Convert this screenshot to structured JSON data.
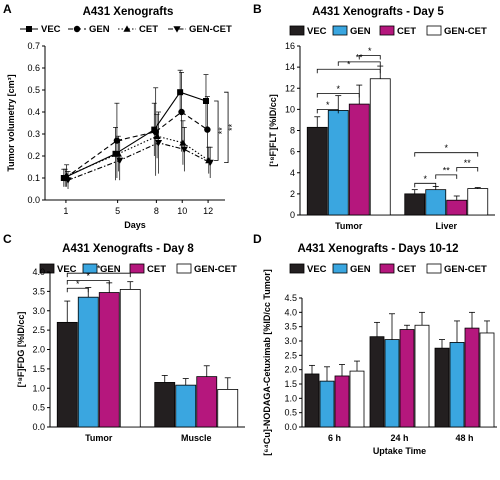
{
  "panels": [
    {
      "letter": "A",
      "title": "A431 Xenografts"
    },
    {
      "letter": "B",
      "title": "A431 Xenografts - Day 5"
    },
    {
      "letter": "C",
      "title": "A431 Xenografts - Day 8"
    },
    {
      "letter": "D",
      "title": "A431 Xenografts - Days 10-12"
    }
  ],
  "colors": {
    "VEC": "#231f20",
    "GEN": "#3aa6e0",
    "CET": "#b5177d",
    "GEN-CET": "#ffffff"
  },
  "chart_data": [
    {
      "type": "line",
      "title": "A431 Xenografts",
      "xlabel": "Days",
      "ylabel": "Tumor volumetry [cm³]",
      "x": [
        1,
        5,
        8,
        10,
        12
      ],
      "xticks": [
        "1",
        "5",
        "8",
        "10",
        "12"
      ],
      "ylim": [
        0,
        0.7
      ],
      "yticks": [
        "0.0",
        "0.1",
        "0.2",
        "0.3",
        "0.4",
        "0.5",
        "0.6",
        "0.7"
      ],
      "series": [
        {
          "name": "VEC",
          "marker": "square",
          "dash": "solid",
          "values": [
            0.1,
            0.21,
            0.32,
            0.49,
            0.45
          ],
          "err": [
            0.04,
            0.12,
            0.12,
            0.1,
            0.12
          ]
        },
        {
          "name": "GEN",
          "marker": "circle",
          "dash": "dashed",
          "values": [
            0.1,
            0.27,
            0.31,
            0.4,
            0.32
          ],
          "err": [
            0.04,
            0.17,
            0.2,
            0.18,
            0.15
          ]
        },
        {
          "name": "CET",
          "marker": "triangle",
          "dash": "dotted",
          "values": [
            0.11,
            0.21,
            0.29,
            0.26,
            0.18
          ],
          "err": [
            0.05,
            0.08,
            0.1,
            0.1,
            0.06
          ]
        },
        {
          "name": "GEN-CET",
          "marker": "triangle-down",
          "dash": "dashdot",
          "values": [
            0.09,
            0.18,
            0.26,
            0.23,
            0.17
          ],
          "err": [
            0.04,
            0.09,
            0.14,
            0.1,
            0.07
          ]
        }
      ],
      "legend": "top",
      "annotations": [
        "**",
        "**"
      ]
    },
    {
      "type": "bar",
      "title": "A431 Xenografts - Day 5",
      "ylabel": "[¹⁸F]FLT [%ID/cc]",
      "categories": [
        "Tumor",
        "Liver"
      ],
      "ylim": [
        0,
        16
      ],
      "yticks": [
        "0",
        "2",
        "4",
        "6",
        "8",
        "10",
        "12",
        "14",
        "16"
      ],
      "series": [
        {
          "name": "VEC",
          "values": [
            8.3,
            2.0
          ],
          "err": [
            1.0,
            0.4
          ]
        },
        {
          "name": "GEN",
          "values": [
            9.9,
            2.4
          ],
          "err": [
            1.4,
            0.3
          ]
        },
        {
          "name": "CET",
          "values": [
            10.5,
            1.4
          ],
          "err": [
            1.8,
            0.4
          ]
        },
        {
          "name": "GEN-CET",
          "values": [
            12.9,
            2.5
          ],
          "err": [
            1.2,
            0.1
          ]
        }
      ],
      "legend": "top",
      "annotations": [
        "*",
        "*",
        "*",
        "**",
        "*",
        "*",
        "**",
        "**",
        "*"
      ]
    },
    {
      "type": "bar",
      "title": "A431 Xenografts - Day 8",
      "ylabel": "[¹⁸F]FDG [%ID/cc]",
      "categories": [
        "Tumor",
        "Muscle"
      ],
      "ylim": [
        0,
        4.0
      ],
      "yticks": [
        "0.0",
        "0.5",
        "1.0",
        "1.5",
        "2.0",
        "2.5",
        "3.0",
        "3.5",
        "4.0"
      ],
      "series": [
        {
          "name": "VEC",
          "values": [
            2.7,
            1.15
          ],
          "err": [
            0.55,
            0.18
          ]
        },
        {
          "name": "GEN",
          "values": [
            3.35,
            1.08
          ],
          "err": [
            0.25,
            0.17
          ]
        },
        {
          "name": "CET",
          "values": [
            3.47,
            1.3
          ],
          "err": [
            0.25,
            0.28
          ]
        },
        {
          "name": "GEN-CET",
          "values": [
            3.55,
            0.97
          ],
          "err": [
            0.2,
            0.3
          ]
        }
      ],
      "legend": "top",
      "annotations": [
        "*",
        "*",
        "*"
      ]
    },
    {
      "type": "bar",
      "title": "A431 Xenografts - Days 10-12",
      "xlabel": "Uptake Time",
      "ylabel": "[⁶⁴Cu]-NODAGA-Cetuximab [%ID/cc Tumor]",
      "categories": [
        "6 h",
        "24 h",
        "48 h"
      ],
      "ylim": [
        0,
        4.5
      ],
      "yticks": [
        "0.0",
        "0.5",
        "1.0",
        "1.5",
        "2.0",
        "2.5",
        "3.0",
        "3.5",
        "4.0",
        "4.5"
      ],
      "series": [
        {
          "name": "VEC",
          "values": [
            1.85,
            3.15,
            2.75
          ],
          "err": [
            0.3,
            0.5,
            0.3
          ]
        },
        {
          "name": "GEN",
          "values": [
            1.6,
            3.05,
            2.95
          ],
          "err": [
            0.5,
            0.9,
            0.75
          ]
        },
        {
          "name": "CET",
          "values": [
            1.78,
            3.4,
            3.45
          ],
          "err": [
            0.4,
            0.15,
            0.55
          ]
        },
        {
          "name": "GEN-CET",
          "values": [
            1.95,
            3.55,
            3.28
          ],
          "err": [
            0.35,
            0.45,
            0.42
          ]
        }
      ],
      "legend": "top"
    }
  ]
}
